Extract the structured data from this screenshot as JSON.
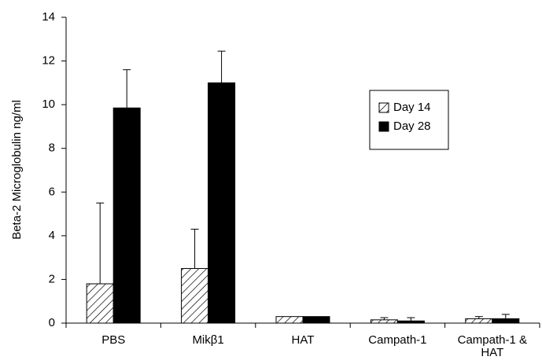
{
  "chart_data": {
    "type": "bar",
    "y_label": "Beta-2 Microglobulin ng/ml",
    "categories": [
      "PBS",
      "Mikβ1",
      "HAT",
      "Campath-1",
      "Campath-1 & HAT"
    ],
    "series": [
      {
        "name": "Day 14",
        "color": "#000000",
        "pattern": "hatch",
        "values": [
          1.8,
          2.5,
          0.3,
          0.15,
          0.2
        ],
        "errors": [
          3.7,
          1.8,
          0,
          0.1,
          0.1
        ]
      },
      {
        "name": "Day 28",
        "color": "#000000",
        "pattern": "solid",
        "values": [
          9.85,
          11.0,
          0.3,
          0.1,
          0.2
        ],
        "errors": [
          1.75,
          1.45,
          0,
          0.15,
          0.2
        ]
      }
    ],
    "ylim": [
      0,
      14
    ],
    "yticks": [
      0,
      2,
      4,
      6,
      8,
      10,
      12,
      14
    ],
    "grid": false
  }
}
